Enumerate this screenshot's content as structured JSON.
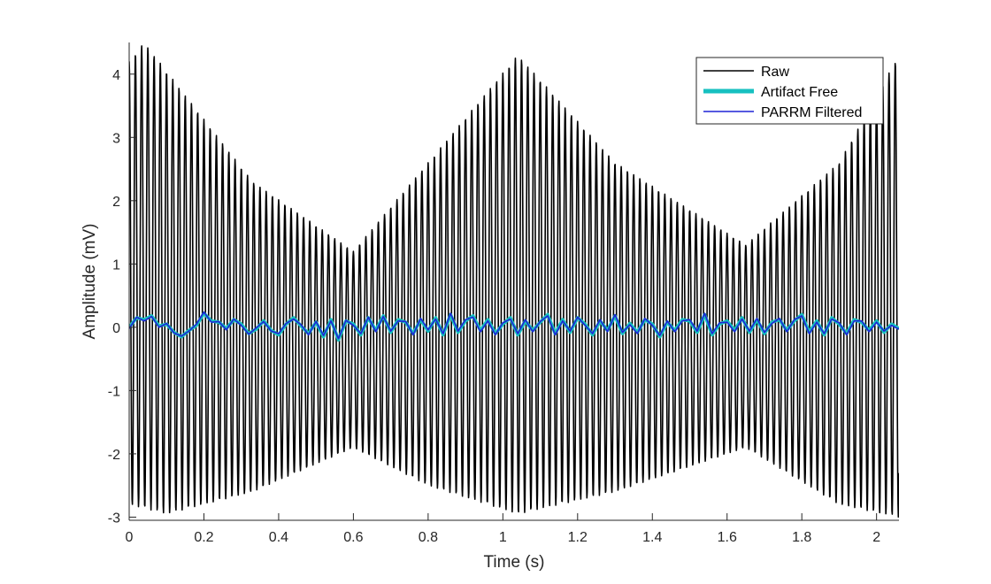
{
  "chart_data": {
    "type": "line",
    "title": "",
    "xlabel": "Time (s)",
    "ylabel": "Amplitude (mV)",
    "xlim": [
      0,
      2.06
    ],
    "ylim": [
      -3.05,
      4.5
    ],
    "xticks": [
      0,
      0.2,
      0.4,
      0.6,
      0.8,
      1,
      1.2,
      1.4,
      1.6,
      1.8,
      2
    ],
    "xtick_labels": [
      "0",
      "0.2",
      "0.4",
      "0.6",
      "0.8",
      "1",
      "1.2",
      "1.4",
      "1.6",
      "1.8",
      "2"
    ],
    "yticks": [
      -3,
      -2,
      -1,
      0,
      1,
      2,
      3,
      4
    ],
    "ytick_labels": [
      "-3",
      "-2",
      "-1",
      "0",
      "1",
      "2",
      "3",
      "4"
    ],
    "grid": false,
    "legend_position": "top-right",
    "legend": [
      "Raw",
      "Artifact Free",
      "PARRM Filtered"
    ],
    "series": [
      {
        "name": "Raw",
        "color": "#000000",
        "oscillation_frequency_hz": 60,
        "envelope_max": {
          "x": [
            0,
            0.04,
            0.33,
            0.6,
            0.8,
            1.04,
            1.3,
            1.65,
            1.9,
            2.06
          ],
          "y": [
            4.2,
            4.5,
            2.3,
            1.2,
            2.6,
            4.3,
            2.6,
            1.3,
            2.6,
            4.3
          ]
        },
        "envelope_min": {
          "x": [
            0,
            0.1,
            0.33,
            0.6,
            0.8,
            1.04,
            1.3,
            1.65,
            1.9,
            2.06
          ],
          "y": [
            -2.8,
            -2.95,
            -2.6,
            -1.9,
            -2.5,
            -2.95,
            -2.6,
            -1.9,
            -2.8,
            -3.0
          ]
        }
      },
      {
        "name": "Artifact Free",
        "color": "#17c0c0",
        "x": [
          0,
          0.02,
          0.04,
          0.06,
          0.08,
          0.1,
          0.12,
          0.14,
          0.16,
          0.18,
          0.2,
          0.22,
          0.24,
          0.26,
          0.28,
          0.3,
          0.32,
          0.34,
          0.36,
          0.38,
          0.4,
          0.42,
          0.44,
          0.46,
          0.48,
          0.5,
          0.52,
          0.54,
          0.56,
          0.58,
          0.6,
          0.62,
          0.64,
          0.66,
          0.68,
          0.7,
          0.72,
          0.74,
          0.76,
          0.78,
          0.8,
          0.82,
          0.84,
          0.86,
          0.88,
          0.9,
          0.92,
          0.94,
          0.96,
          0.98,
          1,
          1.02,
          1.04,
          1.06,
          1.08,
          1.1,
          1.12,
          1.14,
          1.16,
          1.18,
          1.2,
          1.22,
          1.24,
          1.26,
          1.28,
          1.3,
          1.32,
          1.34,
          1.36,
          1.38,
          1.4,
          1.42,
          1.44,
          1.46,
          1.48,
          1.5,
          1.52,
          1.54,
          1.56,
          1.58,
          1.6,
          1.62,
          1.64,
          1.66,
          1.68,
          1.7,
          1.72,
          1.74,
          1.76,
          1.78,
          1.8,
          1.82,
          1.84,
          1.86,
          1.88,
          1.9,
          1.92,
          1.94,
          1.96,
          1.98,
          2,
          2.02,
          2.04,
          2.06
        ],
        "y": [
          0.0,
          0.15,
          0.12,
          0.18,
          0.02,
          0.05,
          -0.08,
          -0.15,
          -0.05,
          0.03,
          0.22,
          0.1,
          0.08,
          -0.02,
          0.12,
          0.05,
          -0.1,
          -0.03,
          0.1,
          -0.05,
          -0.12,
          0.05,
          0.15,
          0.02,
          -0.1,
          0.08,
          -0.15,
          0.12,
          -0.2,
          0.1,
          0.05,
          -0.12,
          0.15,
          -0.05,
          0.18,
          -0.08,
          0.12,
          0.08,
          -0.1,
          0.12,
          -0.06,
          0.15,
          -0.12,
          0.2,
          -0.08,
          0.1,
          0.18,
          -0.05,
          0.12,
          -0.1,
          0.05,
          0.15,
          -0.12,
          0.1,
          -0.05,
          0.08,
          0.2,
          -0.1,
          0.12,
          -0.08,
          0.15,
          0.05,
          -0.12,
          0.1,
          -0.05,
          0.18,
          -0.1,
          0.06,
          -0.08,
          0.12,
          0.05,
          -0.15,
          0.08,
          -0.05,
          0.12,
          0.1,
          -0.08,
          0.2,
          -0.12,
          0.05,
          0.1,
          -0.05,
          0.15,
          -0.08,
          0.12,
          -0.1,
          0.08,
          0.12,
          -0.05,
          0.1,
          0.2,
          -0.08,
          0.1,
          -0.12,
          0.15,
          0.05,
          -0.1,
          0.12,
          0.08,
          -0.05,
          0.1,
          -0.08,
          0.05,
          -0.02
        ]
      },
      {
        "name": "PARRM Filtered",
        "color": "#1f24d6",
        "x": [
          0,
          0.02,
          0.04,
          0.06,
          0.08,
          0.1,
          0.12,
          0.14,
          0.16,
          0.18,
          0.2,
          0.22,
          0.24,
          0.26,
          0.28,
          0.3,
          0.32,
          0.34,
          0.36,
          0.38,
          0.4,
          0.42,
          0.44,
          0.46,
          0.48,
          0.5,
          0.52,
          0.54,
          0.56,
          0.58,
          0.6,
          0.62,
          0.64,
          0.66,
          0.68,
          0.7,
          0.72,
          0.74,
          0.76,
          0.78,
          0.8,
          0.82,
          0.84,
          0.86,
          0.88,
          0.9,
          0.92,
          0.94,
          0.96,
          0.98,
          1,
          1.02,
          1.04,
          1.06,
          1.08,
          1.1,
          1.12,
          1.14,
          1.16,
          1.18,
          1.2,
          1.22,
          1.24,
          1.26,
          1.28,
          1.3,
          1.32,
          1.34,
          1.36,
          1.38,
          1.4,
          1.42,
          1.44,
          1.46,
          1.48,
          1.5,
          1.52,
          1.54,
          1.56,
          1.58,
          1.6,
          1.62,
          1.64,
          1.66,
          1.68,
          1.7,
          1.72,
          1.74,
          1.76,
          1.78,
          1.8,
          1.82,
          1.84,
          1.86,
          1.88,
          1.9,
          1.92,
          1.94,
          1.96,
          1.98,
          2,
          2.02,
          2.04,
          2.06
        ],
        "y": [
          -0.02,
          0.16,
          0.1,
          0.17,
          0.0,
          0.06,
          -0.09,
          -0.14,
          -0.06,
          0.05,
          0.24,
          0.08,
          0.09,
          -0.04,
          0.13,
          0.03,
          -0.11,
          -0.01,
          0.09,
          -0.06,
          -0.1,
          0.06,
          0.13,
          0.04,
          -0.12,
          0.09,
          -0.13,
          0.1,
          -0.18,
          0.11,
          0.03,
          -0.1,
          0.16,
          -0.07,
          0.17,
          -0.06,
          0.1,
          0.09,
          -0.12,
          0.14,
          -0.04,
          0.13,
          -0.1,
          0.22,
          -0.06,
          0.12,
          0.16,
          -0.07,
          0.1,
          -0.12,
          0.07,
          0.13,
          -0.1,
          0.12,
          -0.07,
          0.09,
          0.18,
          -0.12,
          0.1,
          -0.06,
          0.16,
          0.03,
          -0.1,
          0.12,
          -0.07,
          0.2,
          -0.08,
          0.04,
          -0.1,
          0.14,
          0.03,
          -0.13,
          0.1,
          -0.07,
          0.1,
          0.12,
          -0.06,
          0.22,
          -0.1,
          0.07,
          0.08,
          -0.07,
          0.13,
          -0.06,
          0.14,
          -0.08,
          0.06,
          0.14,
          -0.07,
          0.12,
          0.18,
          -0.1,
          0.08,
          -0.1,
          0.13,
          0.07,
          -0.12,
          0.1,
          0.1,
          -0.07,
          0.08,
          -0.06,
          0.03,
          -0.03
        ]
      }
    ]
  }
}
